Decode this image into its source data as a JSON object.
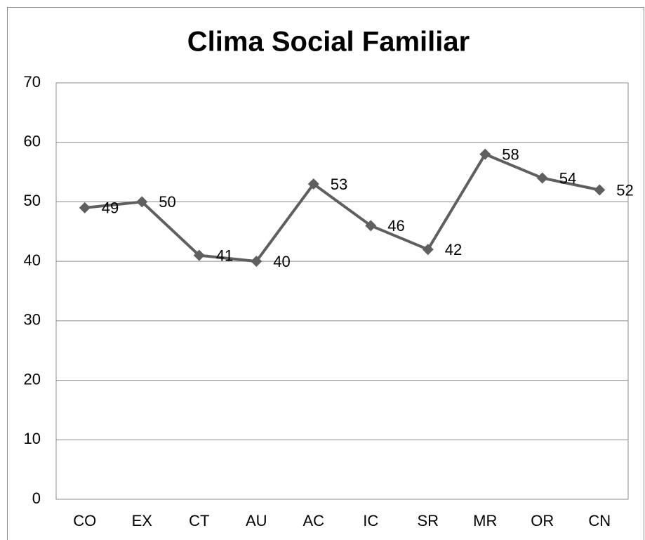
{
  "chart_data": {
    "type": "line",
    "title": "Clima Social Familiar",
    "categories": [
      "CO",
      "EX",
      "CT",
      "AU",
      "AC",
      "IC",
      "SR",
      "MR",
      "OR",
      "CN"
    ],
    "values": [
      49,
      50,
      41,
      40,
      53,
      46,
      42,
      58,
      54,
      52
    ],
    "color": "#5f5f5f",
    "ylim": [
      0,
      70
    ],
    "yticks": [
      0,
      10,
      20,
      30,
      40,
      50,
      60,
      70
    ],
    "grid": true
  }
}
